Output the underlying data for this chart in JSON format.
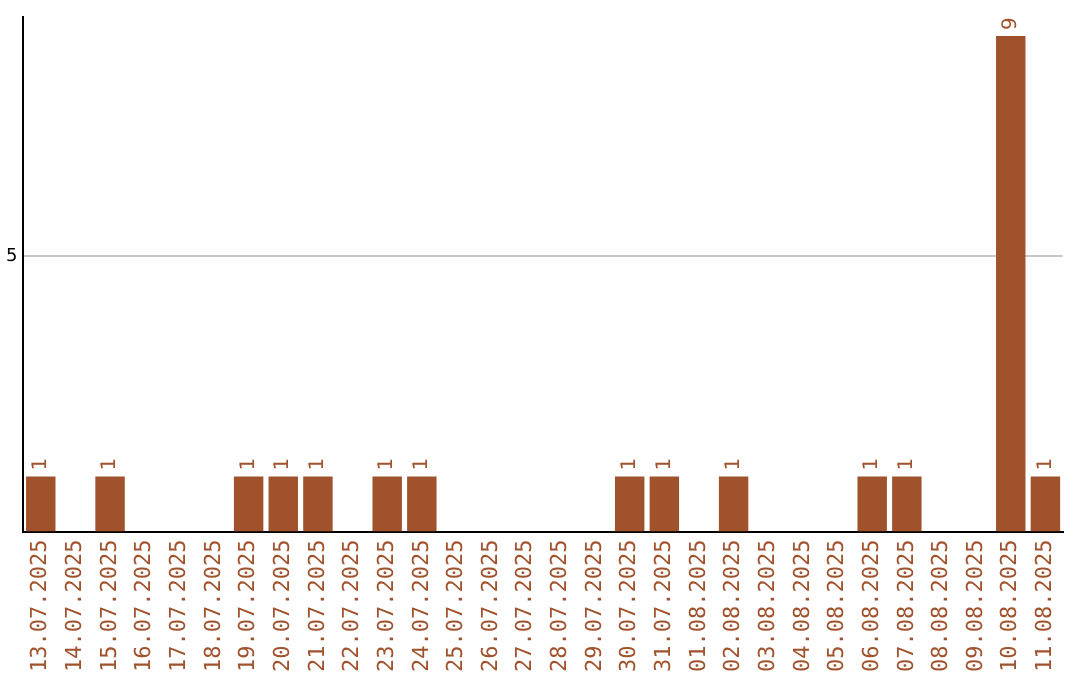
{
  "chart_data": {
    "type": "bar",
    "categories": [
      "13.07.2025",
      "14.07.2025",
      "15.07.2025",
      "16.07.2025",
      "17.07.2025",
      "18.07.2025",
      "19.07.2025",
      "20.07.2025",
      "21.07.2025",
      "22.07.2025",
      "23.07.2025",
      "24.07.2025",
      "25.07.2025",
      "26.07.2025",
      "27.07.2025",
      "28.07.2025",
      "29.07.2025",
      "30.07.2025",
      "31.07.2025",
      "01.08.2025",
      "02.08.2025",
      "03.08.2025",
      "04.08.2025",
      "05.08.2025",
      "06.08.2025",
      "07.08.2025",
      "08.08.2025",
      "09.08.2025",
      "10.08.2025",
      "11.08.2025"
    ],
    "values": [
      1,
      0,
      1,
      0,
      0,
      0,
      1,
      1,
      1,
      0,
      1,
      1,
      0,
      0,
      0,
      0,
      0,
      1,
      1,
      0,
      1,
      0,
      0,
      0,
      1,
      1,
      0,
      0,
      9,
      1
    ],
    "value_labels": [
      "1",
      null,
      "1",
      null,
      null,
      null,
      "1",
      "1",
      "1",
      null,
      "1",
      "1",
      null,
      null,
      null,
      null,
      null,
      "1",
      "1",
      null,
      "1",
      null,
      null,
      null,
      "1",
      "1",
      null,
      null,
      "9",
      "1"
    ],
    "color": "#a0522d",
    "ylim": [
      0,
      9.35
    ],
    "yticks": [
      5
    ],
    "grid": "y",
    "legend": false
  }
}
